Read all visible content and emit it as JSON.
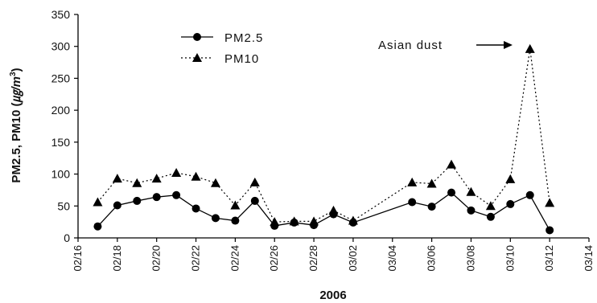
{
  "chart_data": {
    "type": "line",
    "xlabel": "2006",
    "ylabel_main": "PM2.5, PM10 (",
    "ylabel_unit": "㎍/m",
    "ylabel_sup": "3",
    "ylabel_end": ")",
    "ylim": [
      0,
      350
    ],
    "yticks": [
      "0",
      "50",
      "100",
      "150",
      "200",
      "250",
      "300",
      "350"
    ],
    "xlim_days": [
      0,
      26
    ],
    "xticks": [
      "02/16",
      "02/18",
      "02/20",
      "02/22",
      "02/24",
      "02/26",
      "02/28",
      "03/02",
      "03/04",
      "03/06",
      "03/08",
      "03/10",
      "03/12",
      "03/14"
    ],
    "grid": false,
    "legend_position": "top-left",
    "annotation": "Asian dust",
    "series": [
      {
        "name": "PM2.5",
        "style": "solid",
        "marker": "circle",
        "color": "#000000",
        "x": [
          "02/17",
          "02/18",
          "02/19",
          "02/20",
          "02/21",
          "02/22",
          "02/23",
          "02/24",
          "02/25",
          "02/26",
          "02/27",
          "02/28",
          "03/01",
          "03/02",
          "03/05",
          "03/06",
          "03/07",
          "03/08",
          "03/09",
          "03/10",
          "03/11",
          "03/12"
        ],
        "values": [
          18,
          51,
          58,
          64,
          67,
          46,
          31,
          27,
          58,
          19,
          24,
          20,
          37,
          24,
          56,
          49,
          71,
          43,
          33,
          53,
          67,
          12
        ]
      },
      {
        "name": "PM10",
        "style": "dotted",
        "marker": "triangle",
        "color": "#000000",
        "x": [
          "02/17",
          "02/18",
          "02/19",
          "02/20",
          "02/21",
          "02/22",
          "02/23",
          "02/24",
          "02/25",
          "02/26",
          "02/27",
          "02/28",
          "03/01",
          "03/02",
          "03/05",
          "03/06",
          "03/07",
          "03/08",
          "03/09",
          "03/10",
          "03/11",
          "03/12"
        ],
        "values": [
          56,
          93,
          86,
          93,
          102,
          96,
          86,
          51,
          87,
          25,
          26,
          26,
          43,
          27,
          87,
          85,
          115,
          72,
          50,
          92,
          296,
          55
        ]
      }
    ]
  }
}
